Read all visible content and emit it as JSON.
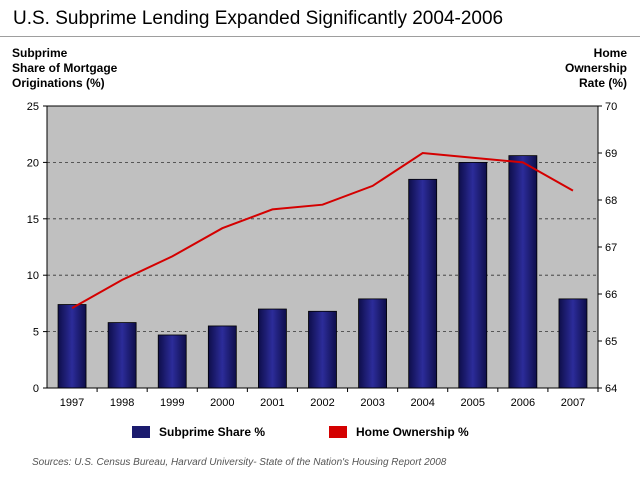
{
  "title": "U.S. Subprime Lending Expanded Significantly 2004-2006",
  "left_axis_label": [
    "Subprime",
    "Share of Mortgage",
    "Originations (%)"
  ],
  "right_axis_label": [
    "Home",
    "Ownership",
    "Rate (%)"
  ],
  "source": "Sources:  U.S. Census Bureau, Harvard University- State of the Nation's Housing Report 2008",
  "colors": {
    "bar": "#1b1b6e",
    "line": "#d40000",
    "plot_bg": "#c0c0c0"
  },
  "legend": [
    {
      "label": "Subprime Share %",
      "color": "#1b1b6e"
    },
    {
      "label": "Home Ownership %",
      "color": "#d40000"
    }
  ],
  "chart_data": {
    "type": "bar",
    "categories": [
      "1997",
      "1998",
      "1999",
      "2000",
      "2001",
      "2002",
      "2003",
      "2004",
      "2005",
      "2006",
      "2007"
    ],
    "series": [
      {
        "name": "Subprime Share %",
        "type": "bar",
        "axis": "left",
        "values": [
          7.4,
          5.8,
          4.7,
          5.5,
          7.0,
          6.8,
          7.9,
          18.5,
          20.0,
          20.6,
          7.9
        ]
      },
      {
        "name": "Home Ownership %",
        "type": "line",
        "axis": "right",
        "values": [
          65.7,
          66.3,
          66.8,
          67.4,
          67.8,
          67.9,
          68.3,
          69.0,
          68.9,
          68.8,
          68.2
        ]
      }
    ],
    "left_axis": {
      "ylim": [
        0,
        25
      ],
      "ticks": [
        0,
        5,
        10,
        15,
        20,
        25
      ]
    },
    "right_axis": {
      "ylim": [
        64,
        70
      ],
      "ticks": [
        64,
        65,
        66,
        67,
        68,
        69,
        70
      ]
    },
    "grid": "horizontal dashed",
    "legend_position": "bottom"
  }
}
